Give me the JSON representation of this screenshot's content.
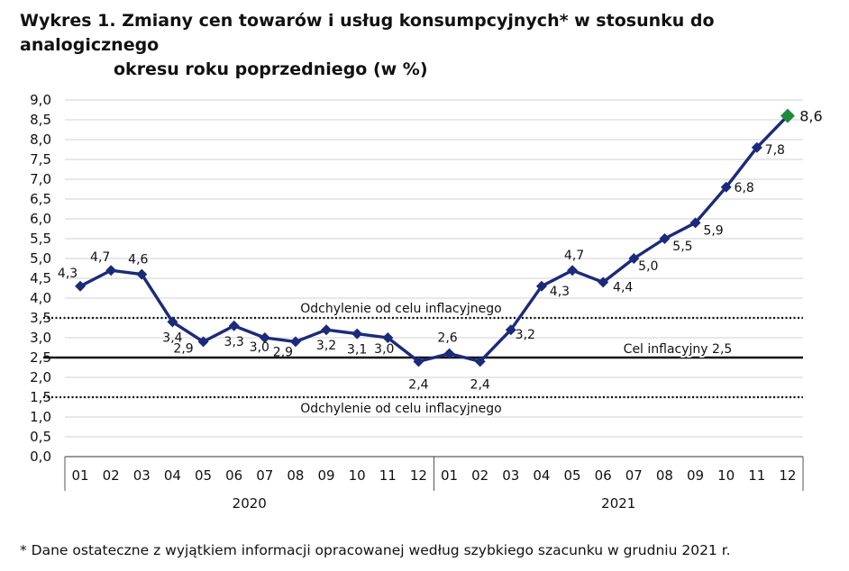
{
  "title": {
    "line1": "Wykres 1. Zmiany cen towarów i usług konsumpcyjnych* w stosunku do analogicznego",
    "line2": "okresu roku poprzedniego (w %)"
  },
  "footnote": "* Dane ostateczne z wyjątkiem informacji opracowanej według szybkiego szacunku w grudniu 2021 r.",
  "chart_data": {
    "type": "line",
    "categories": [
      "01",
      "02",
      "03",
      "04",
      "05",
      "06",
      "07",
      "08",
      "09",
      "10",
      "11",
      "12",
      "01",
      "02",
      "03",
      "04",
      "05",
      "06",
      "07",
      "08",
      "09",
      "10",
      "11",
      "12"
    ],
    "year_groups": [
      {
        "label": "2020",
        "start": 0,
        "end": 11
      },
      {
        "label": "2021",
        "start": 12,
        "end": 23
      }
    ],
    "series": [
      {
        "values": [
          4.3,
          4.7,
          4.6,
          3.4,
          2.9,
          3.3,
          3.0,
          2.9,
          3.2,
          3.1,
          3.0,
          2.4,
          2.6,
          2.4,
          3.2,
          4.3,
          4.7,
          4.4,
          5.0,
          5.5,
          5.9,
          6.8,
          7.8,
          8.6
        ],
        "data_labels": [
          "4,3",
          "4,7",
          "4,6",
          "3,4",
          "2,9",
          "3,3",
          "3,0",
          "2,9",
          "3,2",
          "3,1",
          "3,0",
          "2,4",
          "2,6",
          "2,4",
          "3,2",
          "4,3",
          "4,7",
          "4,4",
          "5,0",
          "5,5",
          "5,9",
          "6,8",
          "7,8",
          "8,6"
        ],
        "color": "#1c2a7a",
        "highlight_last_color": "#1e8a3c"
      }
    ],
    "reference_lines": [
      {
        "value": 3.5,
        "style": "dotted",
        "label": "Odchylenie od celu inflacyjnego"
      },
      {
        "value": 2.5,
        "style": "solid",
        "label": "Cel inflacyjny 2,5"
      },
      {
        "value": 1.5,
        "style": "dotted",
        "label": "Odchylenie od celu inflacyjnego"
      }
    ],
    "ylim": [
      0,
      9
    ],
    "yticks": [
      "0,0",
      "0,5",
      "1,0",
      "1,5",
      "2,0",
      "2,5",
      "3,0",
      "3,5",
      "4,0",
      "4,5",
      "5,0",
      "5,5",
      "6,0",
      "6,5",
      "7,0",
      "7,5",
      "8,0",
      "8,5",
      "9,0"
    ],
    "grid": true,
    "xlabel": "",
    "ylabel": ""
  }
}
